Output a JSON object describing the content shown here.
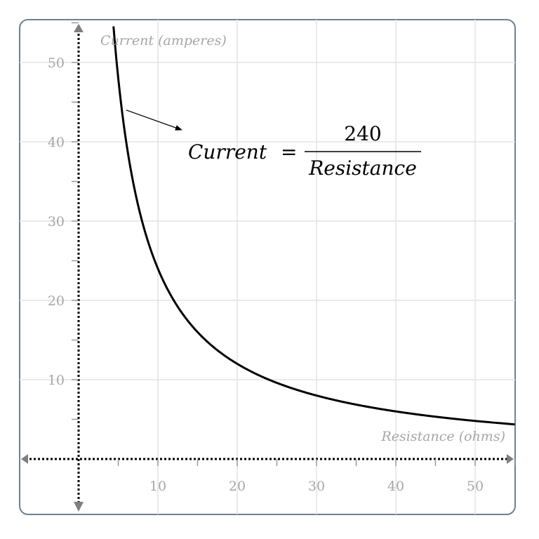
{
  "chart_data": {
    "type": "line",
    "title": "",
    "xlabel": "Resistance (ohms)",
    "ylabel": "Current (amperes)",
    "xlim": [
      -7,
      55
    ],
    "ylim": [
      -7,
      55
    ],
    "x_ticks": [
      10,
      20,
      30,
      40,
      50
    ],
    "y_ticks": [
      10,
      20,
      30,
      40,
      50
    ],
    "x_tick_labels": [
      "10",
      "20",
      "30",
      "40",
      "50"
    ],
    "y_tick_labels": [
      "10",
      "20",
      "30",
      "40",
      "50"
    ],
    "grid": true,
    "grid_step": 10,
    "minor_tick_step": 5,
    "series": [
      {
        "equation": "Current = 240 / Resistance",
        "k": 240,
        "x": [
          4.4,
          5,
          6,
          8,
          10,
          12,
          15,
          20,
          25,
          30,
          35,
          40,
          45,
          50,
          55
        ],
        "y": [
          54.5,
          48,
          40,
          30,
          24,
          20,
          16,
          12,
          9.6,
          8,
          6.86,
          6,
          5.33,
          4.8,
          4.36
        ],
        "color": "#000000"
      }
    ],
    "annotation": {
      "lhs": "Current",
      "equals": "=",
      "numerator": "240",
      "denominator": "Resistance",
      "arrow_from": [
        6,
        44
      ],
      "arrow_to": [
        13,
        41.5
      ]
    },
    "colors": {
      "grid": "#e3e3e3",
      "frame": "#6e8091",
      "axis": "#000000",
      "tick_text": "#a6a6a6"
    }
  }
}
